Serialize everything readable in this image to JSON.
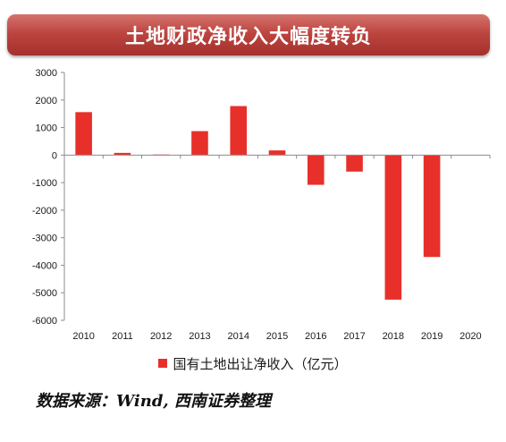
{
  "banner": {
    "title": "土地财政净收入大幅度转负"
  },
  "chart_data": {
    "type": "bar",
    "categories": [
      "2010",
      "2011",
      "2012",
      "2013",
      "2014",
      "2015",
      "2016",
      "2017",
      "2018",
      "2019",
      "2020"
    ],
    "series": [
      {
        "name": "国有土地出让净收入（亿元）",
        "values": [
          1560,
          80,
          20,
          870,
          1780,
          170,
          -1080,
          -600,
          -5250,
          -3700,
          0
        ]
      }
    ],
    "y_ticks": [
      "3000",
      "2000",
      "1000",
      "0",
      "-1000",
      "-2000",
      "-3000",
      "-4000",
      "-5000",
      "-6000"
    ],
    "ylim": [
      -6000,
      3000
    ],
    "grid": false,
    "legend": "bottom",
    "bar_color": "#e8302a"
  },
  "source": {
    "text": "数据来源：Wind, 西南证券整理"
  }
}
